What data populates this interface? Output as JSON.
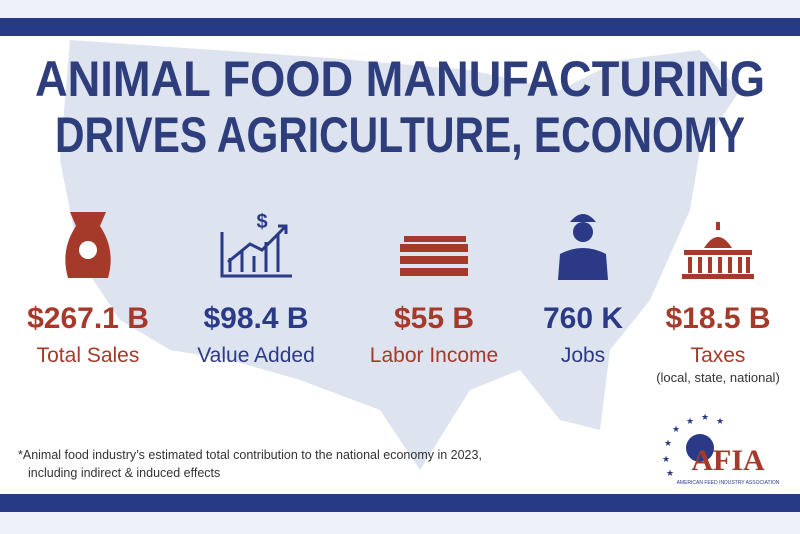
{
  "header": {
    "title_lines": [
      "ANIMAL FOOD MANUFACTURING",
      "DRIVES AGRICULTURE, ECONOMY"
    ]
  },
  "stats": [
    {
      "value": "$267.1 B",
      "label": "Total Sales"
    },
    {
      "value": "$98.4 B",
      "label": "Value Added"
    },
    {
      "value": "$55 B",
      "label": "Labor Income"
    },
    {
      "value": "760 K",
      "label": "Jobs"
    },
    {
      "value": "$18.5 B",
      "label": "Taxes",
      "note": "(local, state, national)"
    }
  ],
  "footnote": [
    "*Animal food industry’s estimated total contribution to the national economy in 2023,",
    "including indirect & induced effects"
  ],
  "logo": {
    "name": "AFIA",
    "tagline": "AMERICAN FEED INDUSTRY ASSOCIATION"
  }
}
